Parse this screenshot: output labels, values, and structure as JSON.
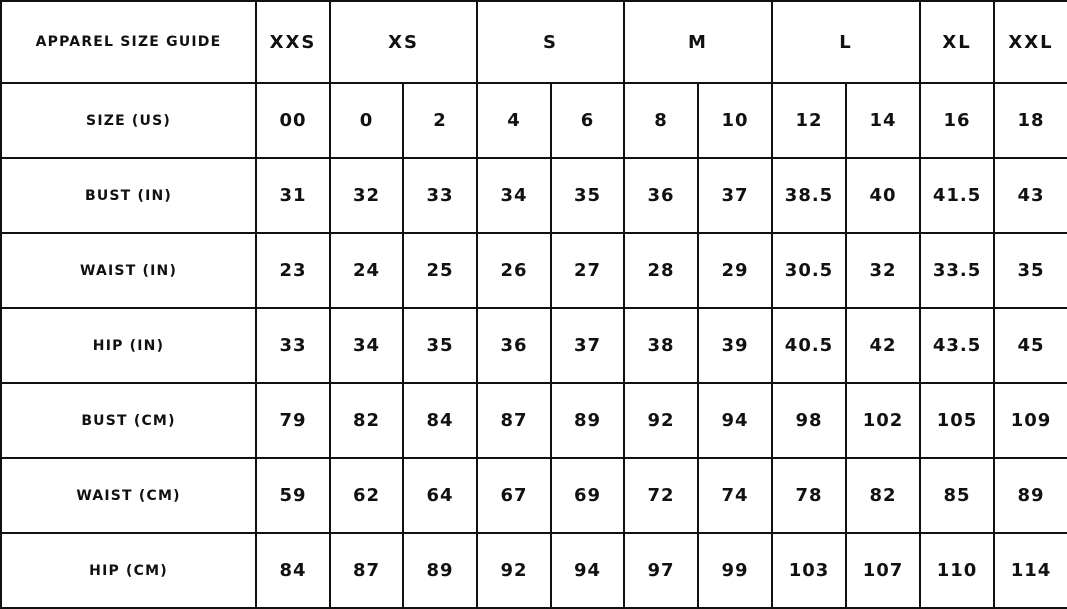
{
  "title": "APPAREL SIZE GUIDE",
  "size_groups": [
    {
      "label": "XXS",
      "span": 1
    },
    {
      "label": "XS",
      "span": 2
    },
    {
      "label": "S",
      "span": 2
    },
    {
      "label": "M",
      "span": 2
    },
    {
      "label": "L",
      "span": 2
    },
    {
      "label": "XL",
      "span": 1
    },
    {
      "label": "XXL",
      "span": 1
    }
  ],
  "rows": [
    {
      "label": "SIZE (US)",
      "values": [
        "00",
        "0",
        "2",
        "4",
        "6",
        "8",
        "10",
        "12",
        "14",
        "16",
        "18"
      ]
    },
    {
      "label": "BUST (IN)",
      "values": [
        "31",
        "32",
        "33",
        "34",
        "35",
        "36",
        "37",
        "38.5",
        "40",
        "41.5",
        "43"
      ]
    },
    {
      "label": "WAIST (IN)",
      "values": [
        "23",
        "24",
        "25",
        "26",
        "27",
        "28",
        "29",
        "30.5",
        "32",
        "33.5",
        "35"
      ]
    },
    {
      "label": "HIP (IN)",
      "values": [
        "33",
        "34",
        "35",
        "36",
        "37",
        "38",
        "39",
        "40.5",
        "42",
        "43.5",
        "45"
      ]
    },
    {
      "label": "BUST (CM)",
      "values": [
        "79",
        "82",
        "84",
        "87",
        "89",
        "92",
        "94",
        "98",
        "102",
        "105",
        "109"
      ]
    },
    {
      "label": "WAIST (CM)",
      "values": [
        "59",
        "62",
        "64",
        "67",
        "69",
        "72",
        "74",
        "78",
        "82",
        "85",
        "89"
      ]
    },
    {
      "label": "HIP (CM)",
      "values": [
        "84",
        "87",
        "89",
        "92",
        "94",
        "97",
        "99",
        "103",
        "107",
        "110",
        "114"
      ]
    }
  ]
}
